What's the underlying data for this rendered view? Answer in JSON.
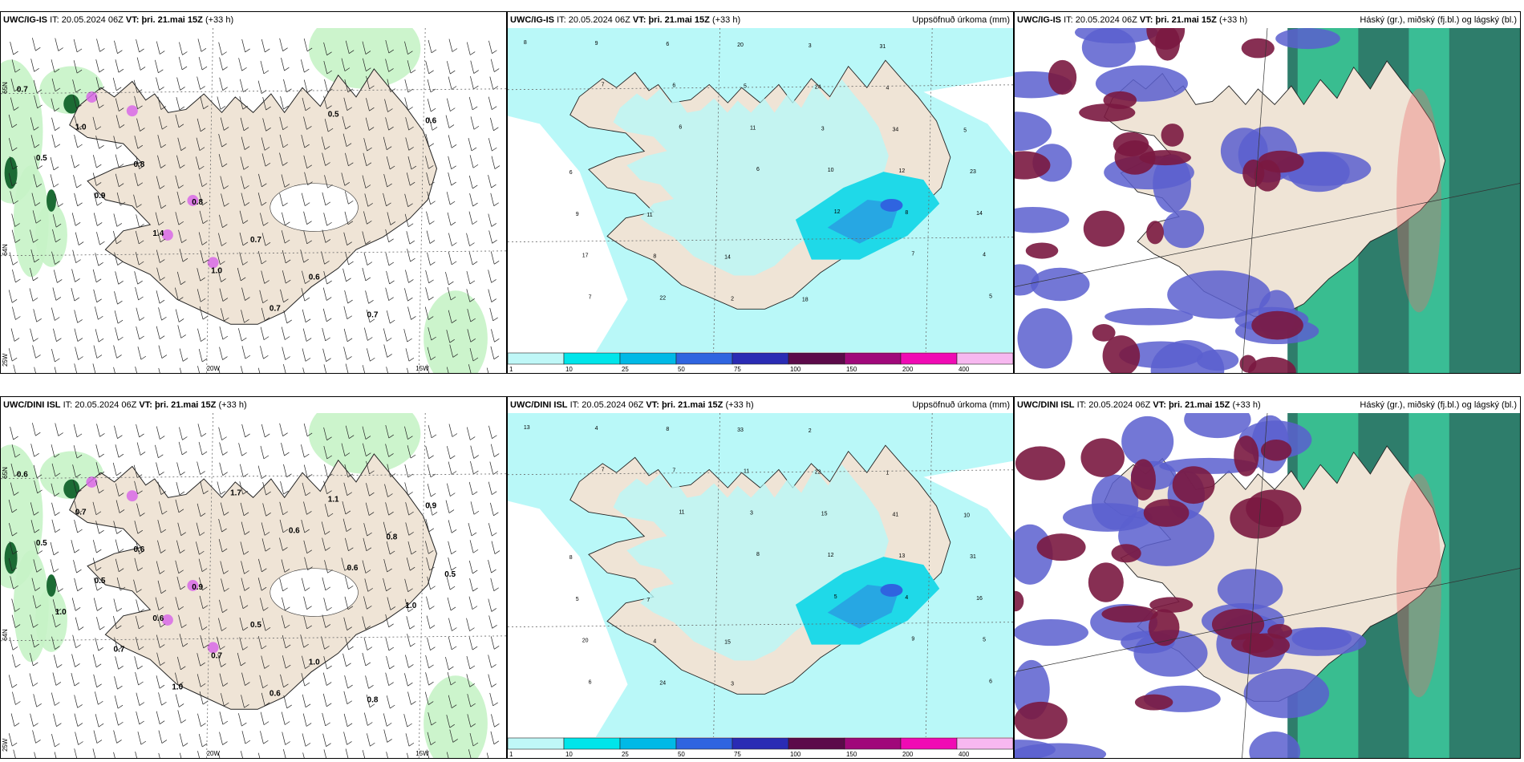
{
  "panels": [
    {
      "id": "p-tl",
      "kind": "wind",
      "header": {
        "model": "UWC/IG-IS",
        "it_label": "IT:",
        "it_value": "20.05.2024 06Z",
        "vt_label": "VT:",
        "vt_value": "þri. 21.mai 15Z",
        "lead": "(+33 h)",
        "title": ""
      },
      "labels": [
        "0.7",
        "1.0",
        "0.8",
        "0.8",
        "0.7",
        "0.6",
        "0.7",
        "0.6",
        "0.5",
        "0.9",
        "1.4",
        "1.0",
        "0.7",
        "0.5"
      ],
      "lat_labels": [
        "65N",
        "64N"
      ],
      "lon_labels": [
        "20W",
        "15W",
        "25W"
      ]
    },
    {
      "id": "p-tm",
      "kind": "precip",
      "header": {
        "model": "UWC/IG-IS",
        "it_label": "IT:",
        "it_value": "20.05.2024 06Z",
        "vt_label": "VT:",
        "vt_value": "þri. 21.mai 15Z",
        "lead": "(+33 h)",
        "title": "Uppsöfnuð úrkoma (mm)"
      },
      "numbers": [
        "8",
        "7",
        "6",
        "6",
        "12",
        "7",
        "5",
        "9",
        "6",
        "11",
        "10",
        "8",
        "4",
        "7",
        "6",
        "5",
        "3",
        "12",
        "14",
        "17",
        "22",
        "20",
        "24",
        "34",
        "23",
        "9",
        "8",
        "2",
        "3",
        "4",
        "5",
        "6",
        "11",
        "14",
        "18",
        "31"
      ],
      "lat_labels": [
        "65N",
        "64N"
      ]
    },
    {
      "id": "p-tr",
      "kind": "cloud",
      "header": {
        "model": "UWC/IG-IS",
        "it_label": "IT:",
        "it_value": "20.05.2024 06Z",
        "vt_label": "VT:",
        "vt_value": "þri. 21.mai 15Z",
        "lead": "(+33 h)",
        "title": "Háský (gr.), miðský (fj.bl.) og lágský (bl.)"
      }
    },
    {
      "id": "p-bl",
      "kind": "wind",
      "header": {
        "model": "UWC/DINI ISL",
        "it_label": "IT:",
        "it_value": "20.05.2024 06Z",
        "vt_label": "VT:",
        "vt_value": "þri. 21.mai 15Z",
        "lead": "(+33 h)",
        "title": ""
      },
      "labels": [
        "0.6",
        "0.7",
        "0.6",
        "0.9",
        "0.5",
        "1.0",
        "0.8",
        "0.9",
        "0.5",
        "0.5",
        "0.6",
        "0.7",
        "0.6",
        "1.1",
        "0.8",
        "0.5",
        "1.0",
        "0.7",
        "1.0",
        "1.7",
        "0.6",
        "0.6",
        "1.0"
      ],
      "lat_labels": [
        "65N",
        "64N"
      ],
      "lon_labels": [
        "20W",
        "15W",
        "25W"
      ]
    },
    {
      "id": "p-bm",
      "kind": "precip",
      "header": {
        "model": "UWC/DINI ISL",
        "it_label": "IT:",
        "it_value": "20.05.2024 06Z",
        "vt_label": "VT:",
        "vt_value": "þri. 21.mai 15Z",
        "lead": "(+33 h)",
        "title": "Uppsöfnuð úrkoma (mm)"
      },
      "numbers": [
        "13",
        "7",
        "11",
        "8",
        "5",
        "9",
        "6",
        "4",
        "7",
        "3",
        "12",
        "4",
        "5",
        "6",
        "8",
        "11",
        "15",
        "13",
        "16",
        "20",
        "24",
        "33",
        "22",
        "41",
        "31",
        "5",
        "4",
        "3",
        "2",
        "1",
        "10",
        "8",
        "7",
        "15"
      ],
      "lat_labels": [
        "65N",
        "64N"
      ]
    },
    {
      "id": "p-br",
      "kind": "cloud",
      "header": {
        "model": "UWC/DINI ISL",
        "it_label": "IT:",
        "it_value": "20.05.2024 06Z",
        "vt_label": "VT:",
        "vt_value": "þri. 21.mai 15Z",
        "lead": "(+33 h)",
        "title": "Háský (gr.), miðský (fj.bl.) og lágský (bl.)"
      }
    }
  ],
  "precip_colorbar": {
    "ticks": [
      "1",
      "10",
      "25",
      "50",
      "75",
      "100",
      "150",
      "200",
      "400"
    ],
    "colors": [
      "#bff7f7",
      "#00e5ea",
      "#00b9e6",
      "#2f64e0",
      "#2a2bb4",
      "#5c0a4a",
      "#a0087a",
      "#f00ab4",
      "#f7b8f0"
    ]
  },
  "colors": {
    "land": "#efe4d6",
    "sea": "#ffffff",
    "precip_light": "#b9f8f8",
    "precip_mid": "#1fd9e8",
    "precip_strong": "#27a7e3",
    "wind_green_light": "#c6f3c6",
    "wind_green": "#7fd88a",
    "wind_green_dark": "#1c6b34",
    "pink": "#d86ae8",
    "high_cloud": "#2e7d6b",
    "mid_cloud": "#5a5fcf",
    "low_cloud": "#7a1840"
  }
}
